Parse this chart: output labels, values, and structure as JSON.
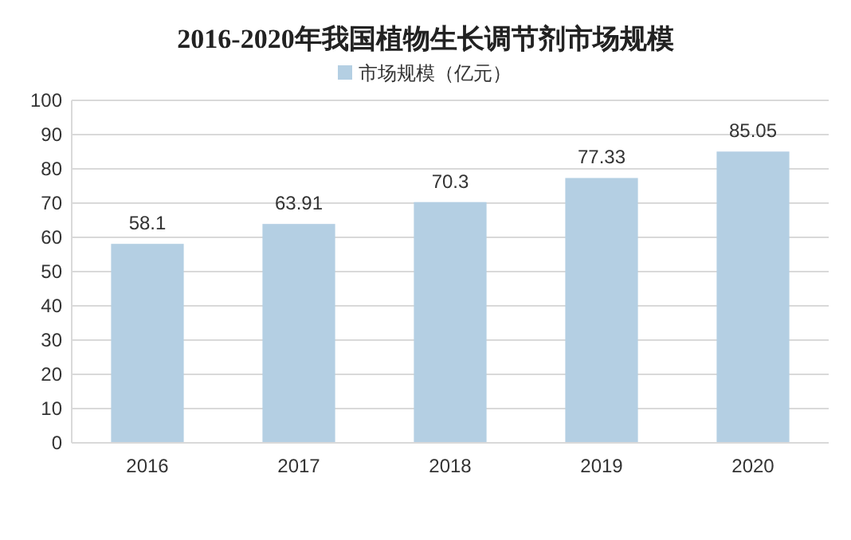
{
  "chart_data": {
    "type": "bar",
    "title": "2016-2020年我国植物生长调节剂市场规模",
    "categories": [
      "2016",
      "2017",
      "2018",
      "2019",
      "2020"
    ],
    "series": [
      {
        "name": "市场规模（亿元）",
        "color": "#b4cfe3",
        "values": [
          58.1,
          63.91,
          70.3,
          77.33,
          85.05
        ]
      }
    ],
    "ylim": [
      0,
      100
    ],
    "yticks": [
      0,
      10,
      20,
      30,
      40,
      50,
      60,
      70,
      80,
      90,
      100
    ],
    "grid": "y",
    "legend": "top",
    "data_labels": true
  }
}
